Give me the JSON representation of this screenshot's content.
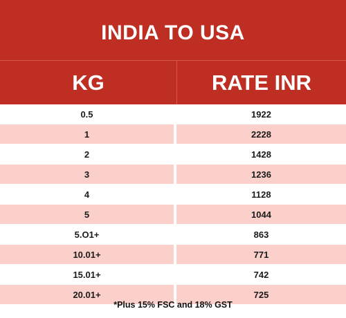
{
  "title": "INDIA TO USA",
  "table": {
    "headers": {
      "kg": "KG",
      "rate": "RATE INR"
    },
    "rows": [
      {
        "kg": "0.5",
        "rate": "1922"
      },
      {
        "kg": "1",
        "rate": "2228"
      },
      {
        "kg": "2",
        "rate": "1428"
      },
      {
        "kg": "3",
        "rate": "1236"
      },
      {
        "kg": "4",
        "rate": "1128"
      },
      {
        "kg": "5",
        "rate": "1044"
      },
      {
        "kg": "5.O1+",
        "rate": "863"
      },
      {
        "kg": "10.01+",
        "rate": "771"
      },
      {
        "kg": "15.01+",
        "rate": "742"
      },
      {
        "kg": "20.01+",
        "rate": "725"
      }
    ]
  },
  "footnote": "*Plus 15% FSC and 18% GST",
  "colors": {
    "header_red": "#bf2e22",
    "row_pink": "#fbcfca",
    "row_white": "#ffffff"
  }
}
